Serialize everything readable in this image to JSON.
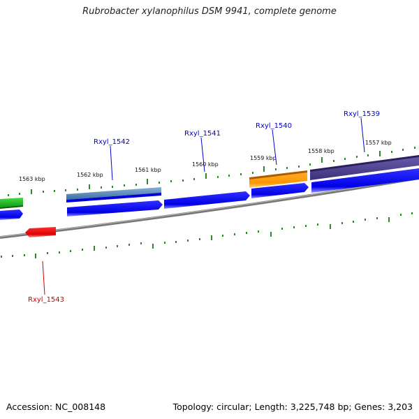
{
  "title": "Rubrobacter xylanophilus DSM 9941, complete genome",
  "footer": {
    "accession": "Accession: NC_008148",
    "topology": "Topology: circular; Length: 3,225,748 bp; Genes: 3,203"
  },
  "colors": {
    "cds_blue": "#0000ee",
    "forward_gene_label": "#0000cc",
    "reverse_gene_label": "#cc0000",
    "tick_green": "#2e8b2e",
    "backbone_gray": "#888888",
    "green_feature": "#22bb22",
    "red_feature": "#ee1111",
    "orange_feature": "#ff9900",
    "purple_feature": "#4b3f8a",
    "steelblue_feature": "#4a7fb0"
  },
  "scale": {
    "unit": "kbp",
    "labels": [
      "1563 kbp",
      "1562 kbp",
      "1561 kbp",
      "1560 kbp",
      "1559 kbp",
      "1558 kbp",
      "1557 kbp"
    ]
  },
  "gene_labels": [
    {
      "text": "Rxyl_1542",
      "strand": "forward"
    },
    {
      "text": "Rxyl_1541",
      "strand": "forward"
    },
    {
      "text": "Rxyl_1540",
      "strand": "forward"
    },
    {
      "text": "Rxyl_1539",
      "strand": "forward"
    },
    {
      "text": "Rxyl_1543",
      "strand": "reverse"
    }
  ]
}
